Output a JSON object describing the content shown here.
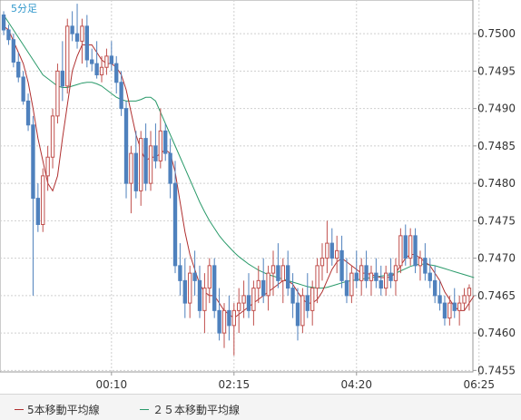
{
  "chart_data": {
    "type": "candlestick",
    "timeframe_label": "5分足",
    "ylim": [
      0.74548,
      0.75045
    ],
    "y_ticks": [
      "0.7500",
      "0.7495",
      "0.7490",
      "0.7485",
      "0.7480",
      "0.7475",
      "0.7470",
      "0.7465",
      "0.7460",
      "0.7455"
    ],
    "x_ticks": [
      {
        "index": 22,
        "label": "00:10"
      },
      {
        "index": 47,
        "label": "02:15"
      },
      {
        "index": 72,
        "label": "04:20"
      },
      {
        "index": 97,
        "label": "06:25"
      }
    ],
    "colors": {
      "up": "#c0504d",
      "down": "#4f81bd",
      "ma5": "#b03030",
      "ma25": "#2a9a6a",
      "grid": "#cfcfcf",
      "axis": "#999999"
    },
    "candles": [
      [
        0.75025,
        0.7503,
        0.74998,
        0.75005
      ],
      [
        0.75005,
        0.75012,
        0.74985,
        0.74992
      ],
      [
        0.74992,
        0.75,
        0.74955,
        0.74962
      ],
      [
        0.74962,
        0.74975,
        0.74935,
        0.74942
      ],
      [
        0.74942,
        0.7495,
        0.74905,
        0.7491
      ],
      [
        0.7491,
        0.7492,
        0.7487,
        0.74878
      ],
      [
        0.74878,
        0.7489,
        0.7465,
        0.7478
      ],
      [
        0.7478,
        0.748,
        0.74735,
        0.74745
      ],
      [
        0.74745,
        0.7482,
        0.74735,
        0.7481
      ],
      [
        0.7481,
        0.7485,
        0.7479,
        0.74835
      ],
      [
        0.74835,
        0.749,
        0.7482,
        0.7489
      ],
      [
        0.7489,
        0.7496,
        0.7488,
        0.7495
      ],
      [
        0.7495,
        0.7499,
        0.7491,
        0.7493
      ],
      [
        0.7493,
        0.7502,
        0.7492,
        0.7501
      ],
      [
        0.7501,
        0.7503,
        0.7499,
        0.75
      ],
      [
        0.75,
        0.7504,
        0.7498,
        0.7499
      ],
      [
        0.7499,
        0.7502,
        0.7496,
        0.7501
      ],
      [
        0.7501,
        0.75025,
        0.74955,
        0.74965
      ],
      [
        0.74965,
        0.7498,
        0.7495,
        0.7496
      ],
      [
        0.7496,
        0.7499,
        0.7494,
        0.74945
      ],
      [
        0.74945,
        0.7497,
        0.74935,
        0.74955
      ],
      [
        0.74955,
        0.7498,
        0.74945,
        0.7497
      ],
      [
        0.7497,
        0.7499,
        0.7495,
        0.7496
      ],
      [
        0.7496,
        0.7497,
        0.7492,
        0.74935
      ],
      [
        0.74935,
        0.7495,
        0.7489,
        0.749
      ],
      [
        0.749,
        0.7491,
        0.7478,
        0.748
      ],
      [
        0.748,
        0.7485,
        0.7476,
        0.7484
      ],
      [
        0.7484,
        0.7487,
        0.7478,
        0.7479
      ],
      [
        0.7479,
        0.7487,
        0.7477,
        0.7486
      ],
      [
        0.7486,
        0.7488,
        0.7479,
        0.748
      ],
      [
        0.748,
        0.7487,
        0.7479,
        0.7485
      ],
      [
        0.7485,
        0.7488,
        0.7482,
        0.7483
      ],
      [
        0.7483,
        0.749,
        0.7482,
        0.7487
      ],
      [
        0.7487,
        0.7488,
        0.7483,
        0.7484
      ],
      [
        0.7484,
        0.7486,
        0.7478,
        0.748
      ],
      [
        0.748,
        0.7483,
        0.7468,
        0.7469
      ],
      [
        0.7469,
        0.7472,
        0.7465,
        0.7467
      ],
      [
        0.7467,
        0.747,
        0.7462,
        0.7464
      ],
      [
        0.7464,
        0.7469,
        0.7462,
        0.7468
      ],
      [
        0.7468,
        0.7471,
        0.7465,
        0.7467
      ],
      [
        0.7467,
        0.7469,
        0.7462,
        0.7463
      ],
      [
        0.7463,
        0.7468,
        0.746,
        0.7466
      ],
      [
        0.7466,
        0.747,
        0.7464,
        0.7469
      ],
      [
        0.7469,
        0.747,
        0.7462,
        0.7463
      ],
      [
        0.7463,
        0.7466,
        0.7459,
        0.746
      ],
      [
        0.746,
        0.7464,
        0.7458,
        0.7463
      ],
      [
        0.7463,
        0.7465,
        0.7459,
        0.7461
      ],
      [
        0.7461,
        0.7464,
        0.7457,
        0.7463
      ],
      [
        0.7463,
        0.7466,
        0.746,
        0.7464
      ],
      [
        0.7464,
        0.7467,
        0.7462,
        0.7465
      ],
      [
        0.7465,
        0.7468,
        0.7462,
        0.7463
      ],
      [
        0.7463,
        0.7467,
        0.7461,
        0.7466
      ],
      [
        0.7466,
        0.7469,
        0.7464,
        0.7467
      ],
      [
        0.7467,
        0.747,
        0.7464,
        0.7465
      ],
      [
        0.7465,
        0.7469,
        0.7463,
        0.7468
      ],
      [
        0.7468,
        0.7471,
        0.7465,
        0.7469
      ],
      [
        0.7469,
        0.7472,
        0.7466,
        0.7467
      ],
      [
        0.7467,
        0.747,
        0.7464,
        0.7469
      ],
      [
        0.7469,
        0.7471,
        0.7465,
        0.7466
      ],
      [
        0.7466,
        0.7468,
        0.7462,
        0.7464
      ],
      [
        0.7464,
        0.7466,
        0.7459,
        0.7461
      ],
      [
        0.7461,
        0.7466,
        0.746,
        0.7465
      ],
      [
        0.7465,
        0.7468,
        0.7462,
        0.7463
      ],
      [
        0.7463,
        0.7467,
        0.7461,
        0.7466
      ],
      [
        0.7466,
        0.747,
        0.7464,
        0.7469
      ],
      [
        0.7469,
        0.7472,
        0.7467,
        0.747
      ],
      [
        0.747,
        0.7475,
        0.7468,
        0.7472
      ],
      [
        0.7472,
        0.7474,
        0.7469,
        0.747
      ],
      [
        0.747,
        0.7473,
        0.7468,
        0.7471
      ],
      [
        0.7471,
        0.7473,
        0.7466,
        0.7467
      ],
      [
        0.7467,
        0.747,
        0.7464,
        0.7465
      ],
      [
        0.7465,
        0.7469,
        0.7464,
        0.7468
      ],
      [
        0.7468,
        0.7471,
        0.7466,
        0.7467
      ],
      [
        0.7467,
        0.747,
        0.7465,
        0.7469
      ],
      [
        0.7469,
        0.7471,
        0.7466,
        0.7467
      ],
      [
        0.7467,
        0.7469,
        0.7465,
        0.7468
      ],
      [
        0.7468,
        0.747,
        0.7466,
        0.7467
      ],
      [
        0.7467,
        0.7469,
        0.7465,
        0.7466
      ],
      [
        0.7466,
        0.7469,
        0.7465,
        0.7468
      ],
      [
        0.7468,
        0.747,
        0.7466,
        0.7467
      ],
      [
        0.7467,
        0.747,
        0.7465,
        0.7469
      ],
      [
        0.7469,
        0.7474,
        0.7468,
        0.7473
      ],
      [
        0.7473,
        0.74745,
        0.7469,
        0.747
      ],
      [
        0.747,
        0.7474,
        0.7469,
        0.7473
      ],
      [
        0.7473,
        0.7474,
        0.7468,
        0.7469
      ],
      [
        0.7469,
        0.7471,
        0.7467,
        0.747
      ],
      [
        0.747,
        0.7472,
        0.7467,
        0.7468
      ],
      [
        0.7468,
        0.747,
        0.7466,
        0.7467
      ],
      [
        0.7467,
        0.7469,
        0.7464,
        0.7465
      ],
      [
        0.7465,
        0.7467,
        0.7463,
        0.7464
      ],
      [
        0.7464,
        0.7465,
        0.7461,
        0.7462
      ],
      [
        0.7462,
        0.7465,
        0.7461,
        0.7464
      ],
      [
        0.7464,
        0.7466,
        0.7462,
        0.7463
      ],
      [
        0.7463,
        0.7465,
        0.7461,
        0.7464
      ],
      [
        0.7464,
        0.7466,
        0.7463,
        0.7465
      ],
      [
        0.7465,
        0.74665,
        0.7463,
        0.7466
      ]
    ],
    "ma5": [
      0.7501,
      0.75005,
      0.7499,
      0.74975,
      0.7496,
      0.74935,
      0.749,
      0.7486,
      0.7483,
      0.748,
      0.7479,
      0.7481,
      0.7486,
      0.74905,
      0.7495,
      0.7497,
      0.74985,
      0.74985,
      0.74985,
      0.74975,
      0.74965,
      0.7496,
      0.7496,
      0.74955,
      0.74945,
      0.74925,
      0.74895,
      0.74865,
      0.74845,
      0.7483,
      0.74835,
      0.74835,
      0.7484,
      0.74845,
      0.7484,
      0.74815,
      0.74775,
      0.74735,
      0.74705,
      0.74685,
      0.74665,
      0.74655,
      0.7465,
      0.7465,
      0.7464,
      0.7463,
      0.74625,
      0.7462,
      0.74625,
      0.7463,
      0.74635,
      0.7464,
      0.74645,
      0.7465,
      0.74655,
      0.7466,
      0.74665,
      0.7467,
      0.7467,
      0.74665,
      0.74655,
      0.74645,
      0.7464,
      0.7464,
      0.74645,
      0.74655,
      0.7467,
      0.74685,
      0.74695,
      0.747,
      0.74695,
      0.7469,
      0.74685,
      0.7468,
      0.7468,
      0.74678,
      0.74676,
      0.74674,
      0.74674,
      0.74675,
      0.7468,
      0.7469,
      0.747,
      0.74705,
      0.74705,
      0.747,
      0.74695,
      0.7469,
      0.7468,
      0.7467,
      0.74655,
      0.74645,
      0.74635,
      0.7463,
      0.7463,
      0.7464,
      0.7465
    ],
    "ma25": [
      0.75025,
      0.75015,
      0.75005,
      0.74995,
      0.74985,
      0.74975,
      0.74965,
      0.74955,
      0.74945,
      0.7494,
      0.74935,
      0.7493,
      0.74928,
      0.74928,
      0.7493,
      0.74932,
      0.74934,
      0.74935,
      0.74935,
      0.74933,
      0.7493,
      0.74925,
      0.7492,
      0.74915,
      0.74912,
      0.7491,
      0.7491,
      0.7491,
      0.74912,
      0.74915,
      0.74915,
      0.7491,
      0.74895,
      0.7488,
      0.74865,
      0.7485,
      0.74835,
      0.7482,
      0.74805,
      0.7479,
      0.74775,
      0.74762,
      0.7475,
      0.7474,
      0.7473,
      0.74722,
      0.74715,
      0.74708,
      0.74702,
      0.74697,
      0.74692,
      0.74688,
      0.74684,
      0.74681,
      0.74678,
      0.74676,
      0.74674,
      0.74672,
      0.7467,
      0.74668,
      0.74666,
      0.74664,
      0.74662,
      0.74661,
      0.7466,
      0.7466,
      0.74661,
      0.74663,
      0.74665,
      0.74667,
      0.74669,
      0.7467,
      0.74671,
      0.74672,
      0.74673,
      0.74674,
      0.74675,
      0.74676,
      0.74677,
      0.74678,
      0.7468,
      0.74683,
      0.74686,
      0.74689,
      0.74691,
      0.74692,
      0.74692,
      0.74691,
      0.7469,
      0.74688,
      0.74686,
      0.74684,
      0.74682,
      0.7468,
      0.74678,
      0.74676,
      0.74674
    ]
  },
  "legend": {
    "ma5_label": "5本移動平均線",
    "ma25_label": "２５本移動平均線"
  }
}
